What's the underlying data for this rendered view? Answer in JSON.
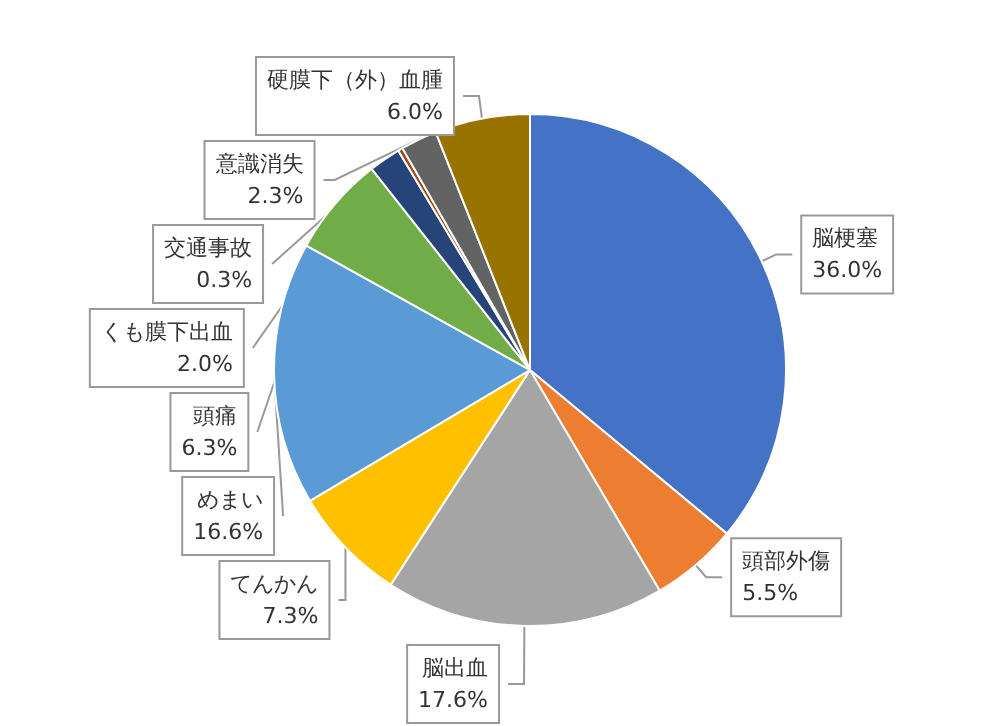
{
  "chart_data": {
    "type": "pie",
    "categories": [
      "脳梗塞",
      "頭部外傷",
      "脳出血",
      "てんかん",
      "めまい",
      "頭痛",
      "くも膜下出血",
      "交通事故",
      "意識消失",
      "硬膜下（外）血腫"
    ],
    "values": [
      36.0,
      5.5,
      17.6,
      7.3,
      16.6,
      6.3,
      2.0,
      0.3,
      2.3,
      6.0
    ],
    "value_labels": [
      "36.0%",
      "5.5%",
      "17.6%",
      "7.3%",
      "16.6%",
      "6.3%",
      "2.0%",
      "0.3%",
      "2.3%",
      "6.0%"
    ],
    "colors": [
      "#4472c4",
      "#ed7d31",
      "#a5a5a5",
      "#ffc000",
      "#5b9bd5",
      "#70ad47",
      "#264478",
      "#9e480e",
      "#636363",
      "#997300"
    ],
    "legend": false
  }
}
